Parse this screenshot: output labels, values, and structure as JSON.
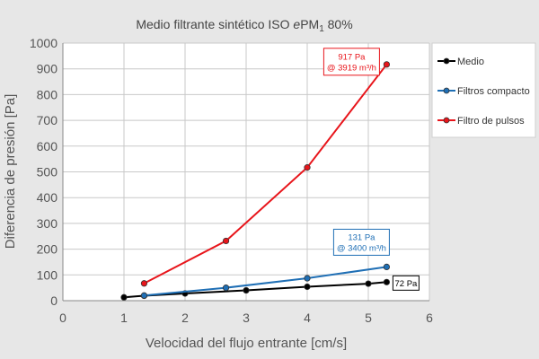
{
  "chart_data": {
    "type": "line",
    "title_main": "Medio filtrante sintético ISO ",
    "title_italic": "e",
    "title_pm": "PM",
    "title_sub": "1",
    "title_tail": " 80%",
    "xlabel": "Velocidad del flujo entrante [cm/s]",
    "ylabel": "Diferencia de presión [Pa]",
    "xlim": [
      0,
      6
    ],
    "ylim": [
      0,
      1000
    ],
    "xticks": [
      0,
      1,
      2,
      3,
      4,
      5,
      6
    ],
    "yticks": [
      0,
      100,
      200,
      300,
      400,
      500,
      600,
      700,
      800,
      900,
      1000
    ],
    "grid": true,
    "legend_position": "right",
    "series": [
      {
        "name": "Medio",
        "color": "#000000",
        "points": [
          [
            1.0,
            13
          ],
          [
            1.33,
            19
          ],
          [
            2.0,
            28
          ],
          [
            3.0,
            40
          ],
          [
            4.0,
            54
          ],
          [
            5.0,
            66
          ],
          [
            5.3,
            72
          ]
        ]
      },
      {
        "name": "Filtros compacto",
        "color": "#1f6fb5",
        "points": [
          [
            1.33,
            20
          ],
          [
            2.67,
            50
          ],
          [
            4.0,
            87
          ],
          [
            5.3,
            131
          ]
        ]
      },
      {
        "name": "Filtro de pulsos",
        "color": "#e8151b",
        "points": [
          [
            1.33,
            67
          ],
          [
            2.67,
            232
          ],
          [
            4.0,
            517
          ],
          [
            5.3,
            917
          ]
        ]
      }
    ],
    "annotations": [
      {
        "series": 2,
        "lines": [
          "917 Pa",
          "@ 3919 m³/h"
        ],
        "color": "#e8151b"
      },
      {
        "series": 1,
        "lines": [
          "131 Pa",
          "@ 3400 m³/h"
        ],
        "color": "#1f6fb5"
      },
      {
        "series": 0,
        "lines": [
          "72 Pa"
        ],
        "color": "#000000"
      }
    ]
  }
}
